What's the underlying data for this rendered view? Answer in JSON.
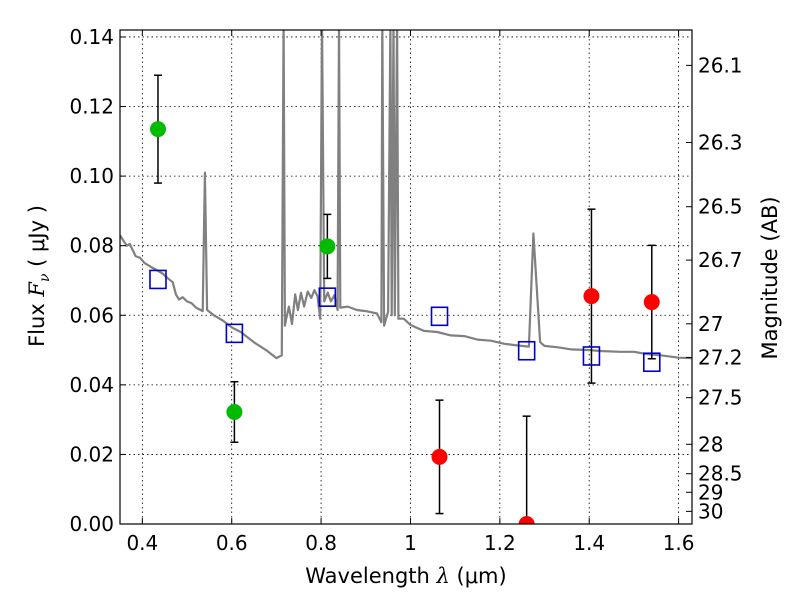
{
  "chart_data": {
    "type": "scatter",
    "xlabel": "Wavelength  λ (μm)",
    "ylabel": "Flux  F_ν  ( μJy )",
    "ylabel_parts": {
      "prefix": "Flux  ",
      "symbol": "F",
      "subscript": "ν",
      "unit": "  ( μJy )"
    },
    "xlabel_parts": {
      "prefix": "Wavelength  ",
      "symbol": "λ",
      "unit": " (μm)"
    },
    "y2label": "Magnitude (AB)",
    "xlim": [
      0.35,
      1.63
    ],
    "ylim": [
      0,
      0.142
    ],
    "grid": true,
    "x_ticks": [
      {
        "value": 0.4,
        "label": "0.4"
      },
      {
        "value": 0.6,
        "label": "0.6"
      },
      {
        "value": 0.8,
        "label": "0.8"
      },
      {
        "value": 1.0,
        "label": "1"
      },
      {
        "value": 1.2,
        "label": "1.2"
      },
      {
        "value": 1.4,
        "label": "1.4"
      },
      {
        "value": 1.6,
        "label": "1.6"
      }
    ],
    "y_ticks": [
      {
        "value": 0.0,
        "label": "0.00"
      },
      {
        "value": 0.02,
        "label": "0.02"
      },
      {
        "value": 0.04,
        "label": "0.04"
      },
      {
        "value": 0.06,
        "label": "0.06"
      },
      {
        "value": 0.08,
        "label": "0.08"
      },
      {
        "value": 0.1,
        "label": "0.10"
      },
      {
        "value": 0.12,
        "label": "0.12"
      },
      {
        "value": 0.14,
        "label": "0.14"
      }
    ],
    "y2_ticks": [
      {
        "mag": 26.1,
        "label": "26.1"
      },
      {
        "mag": 26.3,
        "label": "26.3"
      },
      {
        "mag": 26.5,
        "label": "26.5"
      },
      {
        "mag": 26.7,
        "label": "26.7"
      },
      {
        "mag": 27.0,
        "label": "27"
      },
      {
        "mag": 27.2,
        "label": "27.2"
      },
      {
        "mag": 27.5,
        "label": "27.5"
      },
      {
        "mag": 28.0,
        "label": "28"
      },
      {
        "mag": 28.5,
        "label": "28.5"
      },
      {
        "mag": 29.0,
        "label": "29"
      },
      {
        "mag": 30.0,
        "label": "30"
      }
    ],
    "series": [
      {
        "marker": "circle",
        "color": "#00bb00",
        "points": [
          {
            "x": 0.435,
            "y": 0.1135,
            "err": 0.0155
          },
          {
            "x": 0.606,
            "y": 0.0322,
            "err": 0.0087
          },
          {
            "x": 0.814,
            "y": 0.0798,
            "err": 0.0092
          }
        ]
      },
      {
        "marker": "circle",
        "color": "#ff0000",
        "points": [
          {
            "x": 1.065,
            "y": 0.0193,
            "err": 0.0163
          },
          {
            "x": 1.26,
            "y": 0.0,
            "err": 0.031
          },
          {
            "x": 1.405,
            "y": 0.0655,
            "err": 0.025
          },
          {
            "x": 1.54,
            "y": 0.0638,
            "err": 0.0163
          }
        ]
      },
      {
        "marker": "open-square",
        "color": "#0000cc",
        "points": [
          {
            "x": 0.435,
            "y": 0.0703
          },
          {
            "x": 0.606,
            "y": 0.0548
          },
          {
            "x": 0.814,
            "y": 0.0652
          },
          {
            "x": 1.065,
            "y": 0.0597
          },
          {
            "x": 1.26,
            "y": 0.0498
          },
          {
            "x": 1.405,
            "y": 0.0483
          },
          {
            "x": 1.54,
            "y": 0.0465
          }
        ]
      },
      {
        "marker": "line",
        "color": "#808080",
        "points": [
          [
            0.35,
            0.083
          ],
          [
            0.365,
            0.08
          ],
          [
            0.372,
            0.0805
          ],
          [
            0.385,
            0.077
          ],
          [
            0.395,
            0.0765
          ],
          [
            0.405,
            0.075
          ],
          [
            0.418,
            0.074
          ],
          [
            0.432,
            0.073
          ],
          [
            0.445,
            0.072
          ],
          [
            0.458,
            0.0705
          ],
          [
            0.468,
            0.0695
          ],
          [
            0.475,
            0.066
          ],
          [
            0.482,
            0.0645
          ],
          [
            0.49,
            0.0652
          ],
          [
            0.5,
            0.064
          ],
          [
            0.51,
            0.0635
          ],
          [
            0.52,
            0.0622
          ],
          [
            0.535,
            0.0612
          ],
          [
            0.54,
            0.101
          ],
          [
            0.545,
            0.0615
          ],
          [
            0.56,
            0.06
          ],
          [
            0.58,
            0.0585
          ],
          [
            0.6,
            0.0565
          ],
          [
            0.62,
            0.0552
          ],
          [
            0.65,
            0.0522
          ],
          [
            0.68,
            0.0497
          ],
          [
            0.7,
            0.0477
          ],
          [
            0.712,
            0.0485
          ],
          [
            0.716,
            0.145
          ],
          [
            0.719,
            0.057
          ],
          [
            0.722,
            0.059
          ],
          [
            0.728,
            0.0625
          ],
          [
            0.735,
            0.0575
          ],
          [
            0.742,
            0.066
          ],
          [
            0.748,
            0.0615
          ],
          [
            0.755,
            0.0665
          ],
          [
            0.762,
            0.0625
          ],
          [
            0.77,
            0.0668
          ],
          [
            0.778,
            0.065
          ],
          [
            0.785,
            0.0672
          ],
          [
            0.792,
            0.0655
          ],
          [
            0.798,
            0.059
          ],
          [
            0.802,
            0.145
          ],
          [
            0.807,
            0.064
          ],
          [
            0.815,
            0.0665
          ],
          [
            0.822,
            0.064
          ],
          [
            0.83,
            0.0658
          ],
          [
            0.837,
            0.0615
          ],
          [
            0.84,
            0.145
          ],
          [
            0.843,
            0.0622
          ],
          [
            0.86,
            0.0625
          ],
          [
            0.88,
            0.0615
          ],
          [
            0.9,
            0.0612
          ],
          [
            0.925,
            0.0605
          ],
          [
            0.935,
            0.058
          ],
          [
            0.937,
            0.145
          ],
          [
            0.941,
            0.057
          ],
          [
            0.95,
            0.061
          ],
          [
            0.955,
            0.145
          ],
          [
            0.958,
            0.06
          ],
          [
            0.962,
            0.145
          ],
          [
            0.965,
            0.06
          ],
          [
            0.97,
            0.145
          ],
          [
            0.973,
            0.059
          ],
          [
            0.985,
            0.059
          ],
          [
            1.0,
            0.0572
          ],
          [
            1.03,
            0.0555
          ],
          [
            1.06,
            0.0552
          ],
          [
            1.09,
            0.0542
          ],
          [
            1.12,
            0.054
          ],
          [
            1.15,
            0.053
          ],
          [
            1.18,
            0.0527
          ],
          [
            1.21,
            0.0518
          ],
          [
            1.24,
            0.0513
          ],
          [
            1.265,
            0.051
          ],
          [
            1.275,
            0.0835
          ],
          [
            1.29,
            0.0523
          ],
          [
            1.3,
            0.0512
          ],
          [
            1.33,
            0.0508
          ],
          [
            1.36,
            0.0502
          ],
          [
            1.4,
            0.05
          ],
          [
            1.43,
            0.0497
          ],
          [
            1.47,
            0.0495
          ],
          [
            1.5,
            0.0495
          ],
          [
            1.53,
            0.0488
          ],
          [
            1.56,
            0.0485
          ],
          [
            1.6,
            0.0478
          ],
          [
            1.63,
            0.0477
          ]
        ]
      }
    ]
  }
}
